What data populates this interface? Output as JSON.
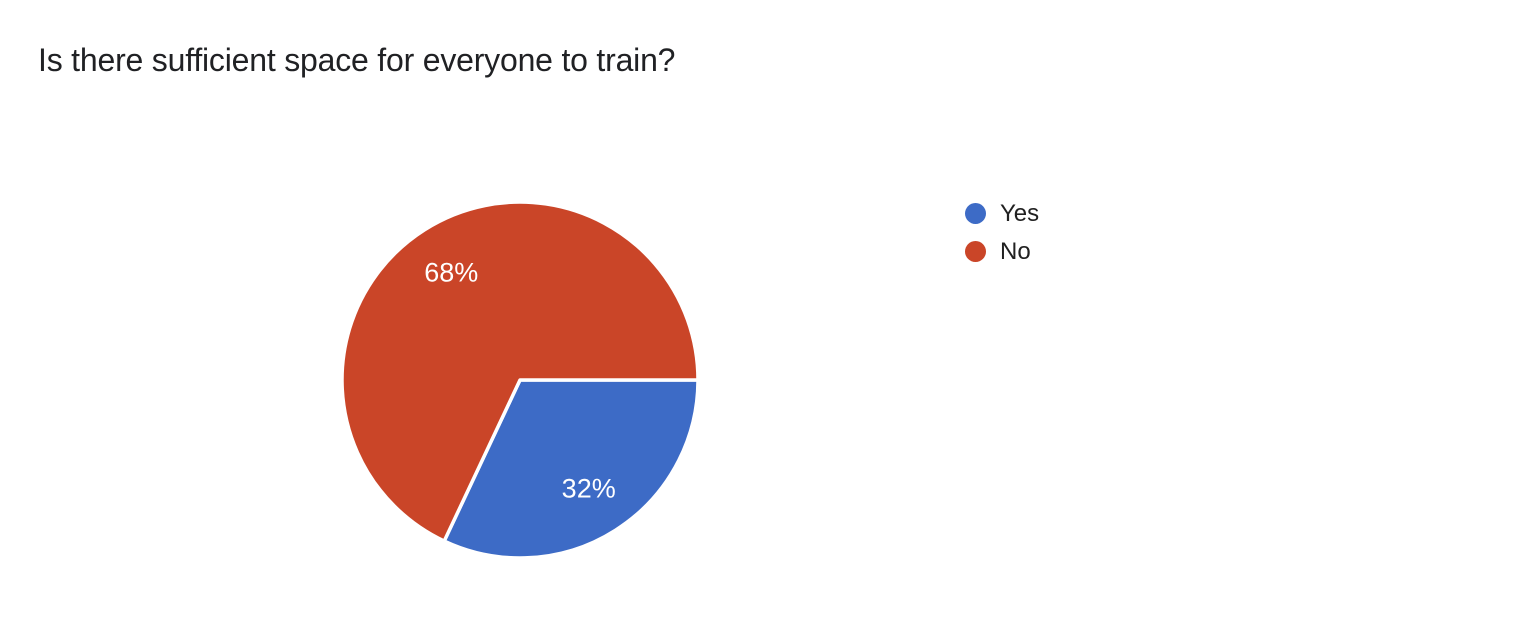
{
  "page": {
    "background": "#ffffff"
  },
  "title": "Is there sufficient space for everyone to train?",
  "chart_data": {
    "type": "pie",
    "title": "Is there sufficient space for everyone to train?",
    "categories": [
      "Yes",
      "No"
    ],
    "values": [
      32,
      68
    ],
    "slices": [
      {
        "label": "Yes",
        "value": 32,
        "percent_label": "32%",
        "color": "#3D6BC6"
      },
      {
        "label": "No",
        "value": 68,
        "percent_label": "68%",
        "color": "#CA4528"
      }
    ],
    "start_angle_deg": 0,
    "direction": "clockwise",
    "slice_label_color": "#ffffff",
    "slice_stroke_color": "#ffffff",
    "legend_position": "right"
  },
  "legend": {
    "items": [
      {
        "label": "Yes",
        "color": "#3D6BC6"
      },
      {
        "label": "No",
        "color": "#CA4528"
      }
    ]
  }
}
